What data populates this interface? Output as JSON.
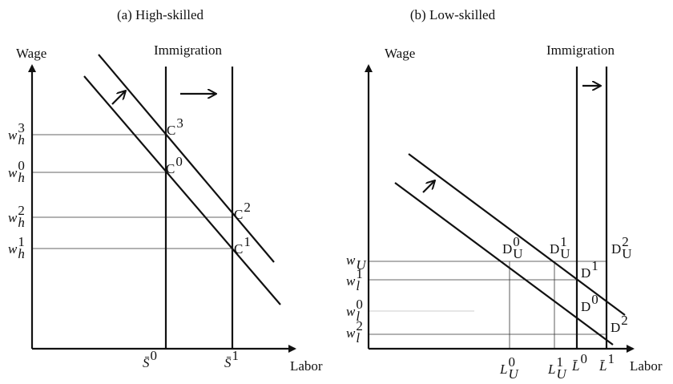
{
  "panels": [
    {
      "title": "(a) High-skilled",
      "y_axis": "Wage",
      "x_axis": "Labor",
      "shift_label": "Immigration",
      "wage_labels": [
        {
          "base": "w",
          "sub": "h",
          "sup": "3"
        },
        {
          "base": "w",
          "sub": "h",
          "sup": "0"
        },
        {
          "base": "w",
          "sub": "h",
          "sup": "2"
        },
        {
          "base": "w",
          "sub": "h",
          "sup": "1"
        }
      ],
      "points": [
        {
          "base": "C",
          "sup": "3"
        },
        {
          "base": "C",
          "sup": "0"
        },
        {
          "base": "C",
          "sup": "2"
        },
        {
          "base": "C",
          "sup": "1"
        }
      ],
      "x_labels": [
        {
          "base": "S̄",
          "sup": "0"
        },
        {
          "base": "S̄",
          "sup": "1"
        }
      ]
    },
    {
      "title": "(b) Low-skilled",
      "y_axis": "Wage",
      "x_axis": "Labor",
      "shift_label": "Immigration",
      "wage_labels": [
        {
          "base": "w",
          "sub": "U"
        },
        {
          "base": "w",
          "sub": "l",
          "sup": "1"
        },
        {
          "base": "w",
          "sub": "l",
          "sup": "0"
        },
        {
          "base": "w",
          "sub": "l",
          "sup": "2"
        }
      ],
      "points": [
        {
          "base": "D",
          "sub": "U",
          "sup": "0"
        },
        {
          "base": "D",
          "sub": "U",
          "sup": "1"
        },
        {
          "base": "D",
          "sub": "U",
          "sup": "2"
        },
        {
          "base": "D",
          "sup": "1"
        },
        {
          "base": "D",
          "sup": "0"
        },
        {
          "base": "D",
          "sup": "2"
        }
      ],
      "x_labels": [
        {
          "base": "L",
          "sub": "U",
          "sup": "0"
        },
        {
          "base": "L",
          "sub": "U",
          "sup": "1"
        },
        {
          "base": "L̄",
          "sup": "0"
        },
        {
          "base": "L̄",
          "sup": "1"
        }
      ]
    }
  ]
}
